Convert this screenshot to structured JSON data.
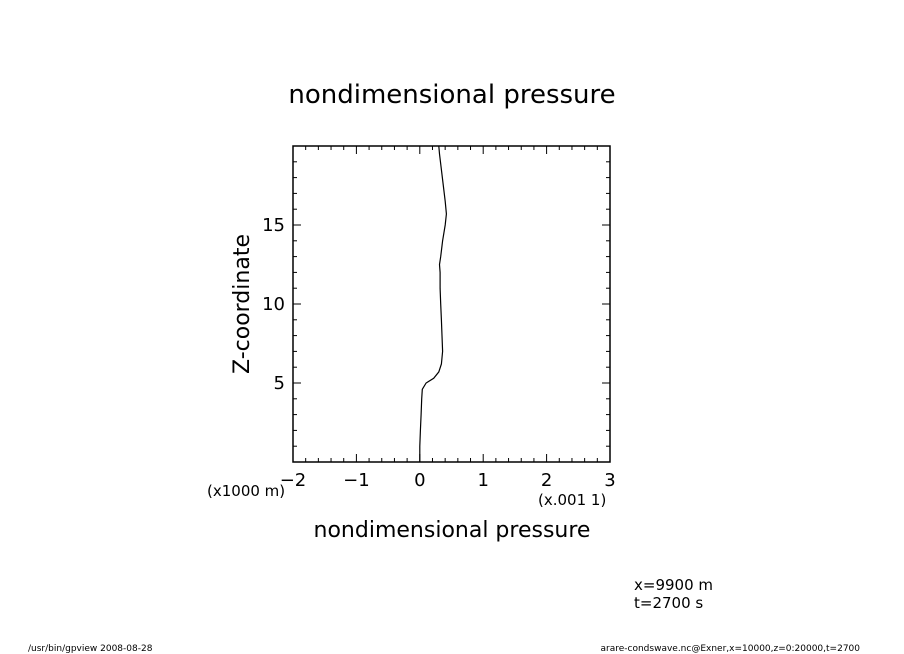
{
  "chart_data": {
    "type": "line",
    "title": "nondimensional pressure",
    "xlabel": "nondimensional pressure",
    "ylabel": "Z-coordinate",
    "x_scale_note": "(x.001 1)",
    "y_scale_note": "(x1000 m)",
    "xlim": [
      -2,
      3
    ],
    "ylim": [
      0,
      20
    ],
    "x_ticks": [
      -2,
      -1,
      0,
      1,
      2,
      3
    ],
    "x_tick_labels": [
      "−2",
      "−1",
      "0",
      "1",
      "2",
      "3"
    ],
    "y_ticks": [
      5,
      10,
      15
    ],
    "y_tick_labels": [
      "5",
      "10",
      "15"
    ],
    "grid": false,
    "series": [
      {
        "points": [
          {
            "x": 0.0,
            "y": 0.0
          },
          {
            "x": 0.0,
            "y": 1.0
          },
          {
            "x": 0.01,
            "y": 2.0
          },
          {
            "x": 0.02,
            "y": 3.0
          },
          {
            "x": 0.03,
            "y": 4.0
          },
          {
            "x": 0.04,
            "y": 4.6
          },
          {
            "x": 0.1,
            "y": 5.0
          },
          {
            "x": 0.22,
            "y": 5.3
          },
          {
            "x": 0.3,
            "y": 5.7
          },
          {
            "x": 0.34,
            "y": 6.2
          },
          {
            "x": 0.36,
            "y": 7.0
          },
          {
            "x": 0.35,
            "y": 8.0
          },
          {
            "x": 0.34,
            "y": 9.0
          },
          {
            "x": 0.33,
            "y": 10.0
          },
          {
            "x": 0.32,
            "y": 11.0
          },
          {
            "x": 0.32,
            "y": 12.0
          },
          {
            "x": 0.31,
            "y": 12.5
          },
          {
            "x": 0.33,
            "y": 13.0
          },
          {
            "x": 0.36,
            "y": 14.0
          },
          {
            "x": 0.4,
            "y": 15.0
          },
          {
            "x": 0.42,
            "y": 15.7
          },
          {
            "x": 0.4,
            "y": 16.5
          },
          {
            "x": 0.37,
            "y": 17.5
          },
          {
            "x": 0.34,
            "y": 18.5
          },
          {
            "x": 0.31,
            "y": 19.5
          },
          {
            "x": 0.3,
            "y": 20.0
          }
        ]
      }
    ]
  },
  "info": {
    "x_position": "x=9900  m",
    "time": "t=2700  s"
  },
  "footer": {
    "left": "/usr/bin/gpview   2008-08-28",
    "right": "arare-condswave.nc@Exner,x=10000,z=0:20000,t=2700"
  }
}
